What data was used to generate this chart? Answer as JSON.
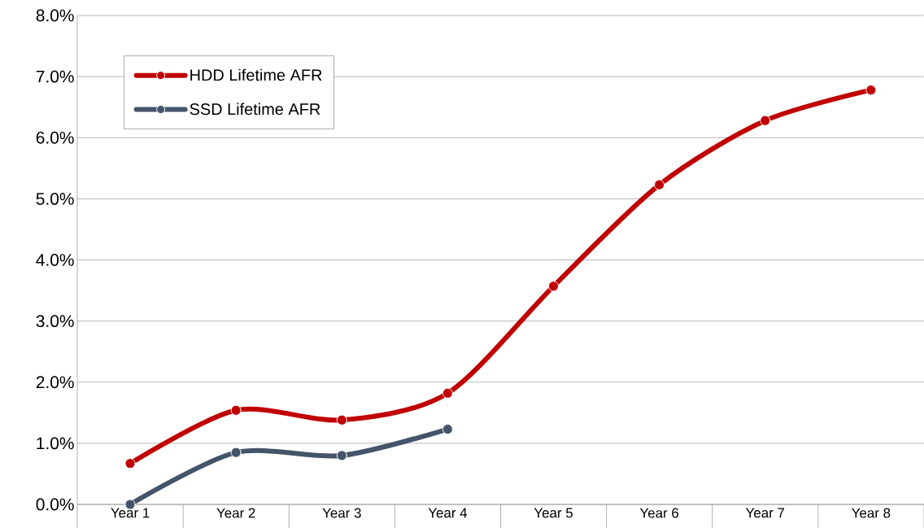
{
  "chart_data": {
    "type": "line",
    "categories": [
      "Year 1",
      "Year 2",
      "Year 3",
      "Year 4",
      "Year 5",
      "Year 6",
      "Year 7",
      "Year 8"
    ],
    "series": [
      {
        "name": "HDD Lifetime AFR",
        "color": "#c00000",
        "values": [
          0.67,
          1.54,
          1.38,
          1.82,
          3.57,
          5.23,
          6.28,
          6.78
        ]
      },
      {
        "name": "SSD Lifetime AFR",
        "color": "#44546a",
        "values": [
          0.0,
          0.85,
          0.8,
          1.23,
          null,
          null,
          null,
          null
        ]
      }
    ],
    "ylim": [
      0,
      8
    ],
    "yticks": [
      {
        "value": 0,
        "label": "0.0%"
      },
      {
        "value": 1,
        "label": "1.0%"
      },
      {
        "value": 2,
        "label": "2.0%"
      },
      {
        "value": 3,
        "label": "3.0%"
      },
      {
        "value": 4,
        "label": "4.0%"
      },
      {
        "value": 5,
        "label": "5.0%"
      },
      {
        "value": 6,
        "label": "6.0%"
      },
      {
        "value": 7,
        "label": "7.0%"
      },
      {
        "value": 8,
        "label": "8.0%"
      }
    ],
    "grid": "y",
    "legend": "top left",
    "marker": "circle",
    "line_style": "solid"
  }
}
